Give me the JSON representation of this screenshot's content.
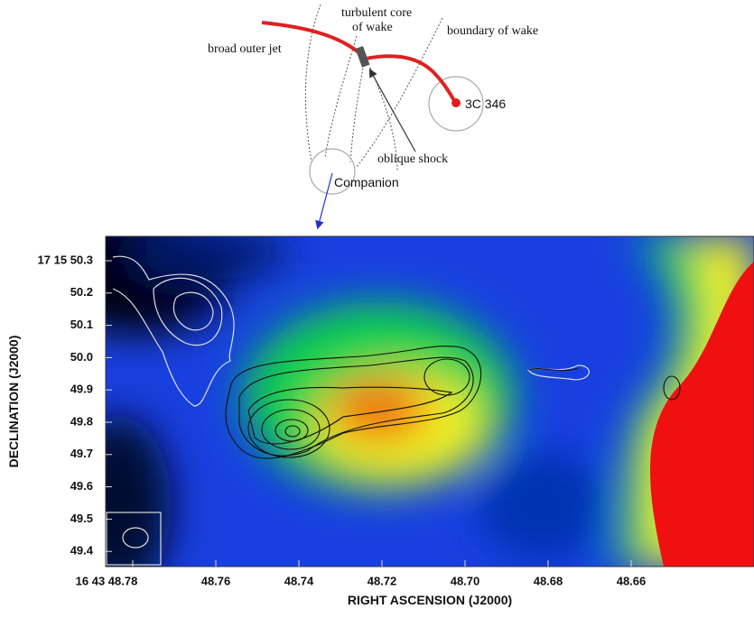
{
  "diagram": {
    "labels": {
      "core_line1": "turbulent core",
      "core_line2": "of wake",
      "boundary": "boundary of wake",
      "outer_jet": "broad outer jet",
      "source": "3C 346",
      "shock": "oblique shock",
      "companion": "Companion"
    }
  },
  "image": {
    "y_axis": {
      "title": "DECLINATION (J2000)",
      "ticks": [
        "17 15 50.3",
        "50.2",
        "50.1",
        "50.0",
        "49.9",
        "49.8",
        "49.7",
        "49.6",
        "49.5",
        "49.4"
      ]
    },
    "x_axis": {
      "title": "RIGHT ASCENSION (J2000)",
      "ticks": [
        "16 43 48.78",
        "48.76",
        "48.74",
        "48.72",
        "48.70",
        "48.68",
        "48.66"
      ]
    }
  }
}
